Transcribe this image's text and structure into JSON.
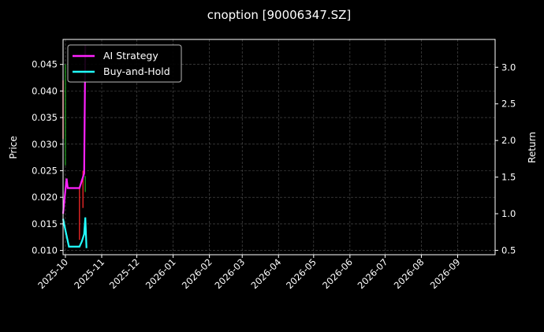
{
  "chart_data": {
    "type": "line",
    "title": "cnoption [90006347.SZ]",
    "ylabel": "Price",
    "y2label": "Return",
    "xlim": [
      "2025-09-29",
      "2026-10-03"
    ],
    "ylim": [
      0.0092,
      0.0497
    ],
    "y2lim": [
      0.44,
      3.38
    ],
    "grid": true,
    "legend": "top-left",
    "xticks": [
      "2025-10",
      "2025-11",
      "2025-12",
      "2026-01",
      "2026-02",
      "2026-03",
      "2026-04",
      "2026-05",
      "2026-06",
      "2026-07",
      "2026-08",
      "2026-09"
    ],
    "yticks": [
      "0.010",
      "0.015",
      "0.020",
      "0.025",
      "0.030",
      "0.035",
      "0.040",
      "0.045"
    ],
    "y2ticks": [
      "0.5",
      "1.0",
      "1.5",
      "2.0",
      "2.5",
      "3.0"
    ],
    "candles": [
      {
        "date": "2025-09-29",
        "open": 0.042,
        "close": 0.031,
        "color": "#ff2a2a"
      },
      {
        "date": "2025-10-01",
        "open": 0.026,
        "close": 0.045,
        "color": "#1f9e1f"
      },
      {
        "date": "2025-10-13",
        "open": 0.022,
        "close": 0.012,
        "color": "#ff2a2a"
      },
      {
        "date": "2025-10-16",
        "open": 0.025,
        "close": 0.018,
        "color": "#ff2a2a"
      },
      {
        "date": "2025-10-18",
        "open": 0.021,
        "close": 0.024,
        "color": "#1f9e1f"
      }
    ],
    "series": [
      {
        "name": "AI Strategy",
        "color": "#ff22ff",
        "x": [
          "2025-09-29",
          "2025-10-02",
          "2025-10-03",
          "2025-10-11",
          "2025-10-13",
          "2025-10-17",
          "2025-10-18"
        ],
        "values": [
          1.0,
          1.48,
          1.35,
          1.35,
          1.35,
          1.55,
          3.3
        ]
      },
      {
        "name": "Buy-and-Hold",
        "color": "#22ffff",
        "x": [
          "2025-09-29",
          "2025-09-30",
          "2025-10-04",
          "2025-10-11",
          "2025-10-13",
          "2025-10-15",
          "2025-10-17",
          "2025-10-18",
          "2025-10-19"
        ],
        "values": [
          0.93,
          0.85,
          0.55,
          0.55,
          0.55,
          0.62,
          0.72,
          0.95,
          0.53
        ]
      }
    ]
  }
}
